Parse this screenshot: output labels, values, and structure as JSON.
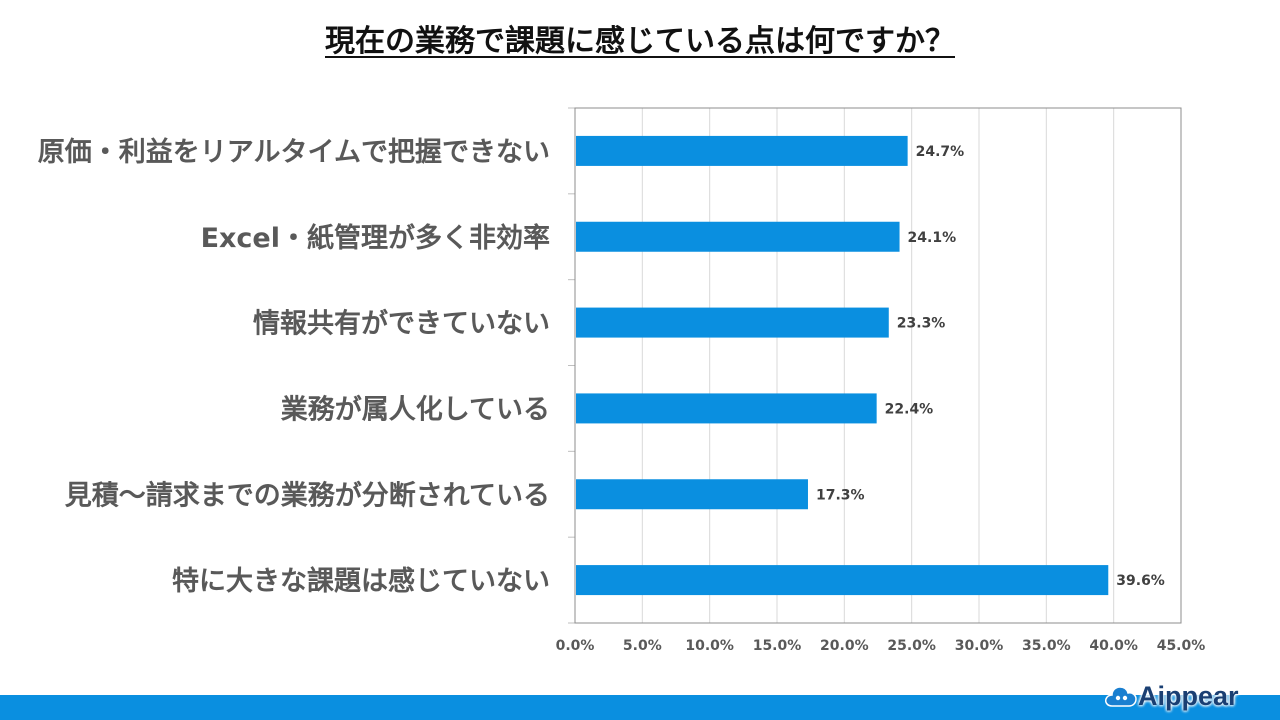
{
  "colors": {
    "bar": "#0a8fe0",
    "footer": "#0a8fe0",
    "logo_text": "#1a3f73"
  },
  "logo": {
    "text": "Aippear",
    "icon": "cloud-icon"
  },
  "chart_data": {
    "type": "bar",
    "orientation": "horizontal",
    "title": "現在の業務で課題に感じている点は何ですか？",
    "categories": [
      "原価・利益をリアルタイムで把握できない",
      "Excel・紙管理が多く非効率",
      "情報共有ができていない",
      "業務が属人化している",
      "見積～請求までの業務が分断されている",
      "特に大きな課題は感じていない"
    ],
    "values": [
      24.7,
      24.1,
      23.3,
      22.4,
      17.3,
      39.6
    ],
    "value_labels": [
      "24.7%",
      "24.1%",
      "23.3%",
      "22.4%",
      "17.3%",
      "39.6%"
    ],
    "xlim": [
      0,
      45
    ],
    "xticks": [
      "0.0%",
      "5.0%",
      "10.0%",
      "15.0%",
      "20.0%",
      "25.0%",
      "30.0%",
      "35.0%",
      "40.0%",
      "45.0%"
    ],
    "grid": true,
    "legend": "none"
  }
}
